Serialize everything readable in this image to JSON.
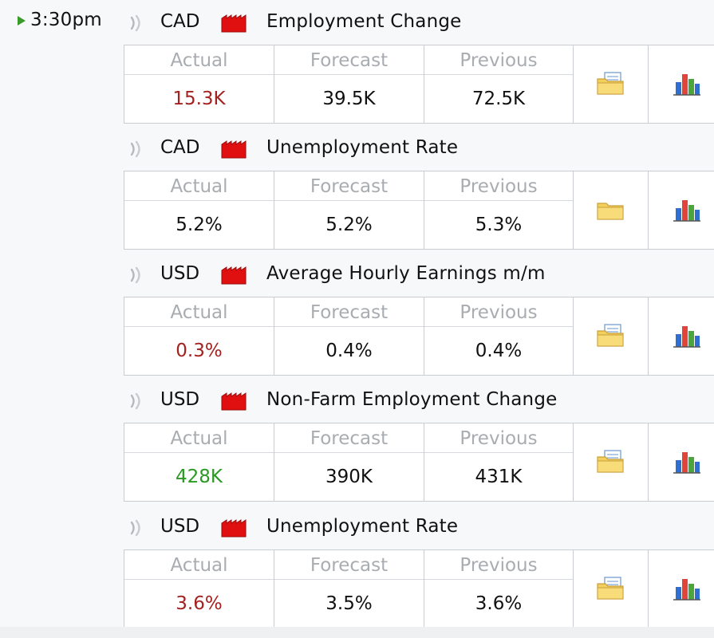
{
  "time": "3:30pm",
  "colors": {
    "negative": "#a3221f",
    "positive": "#2a9a22",
    "neutral": "#111111",
    "impact_high": "#e01010"
  },
  "headers": {
    "actual": "Actual",
    "forecast": "Forecast",
    "previous": "Previous"
  },
  "events": [
    {
      "currency": "CAD",
      "impact": "high",
      "title": "Employment Change",
      "actual": "15.3K",
      "actual_status": "negative",
      "forecast": "39.5K",
      "previous": "72.5K",
      "detail_icon": "folder-with-document-icon",
      "chart_icon": "bar-chart-icon"
    },
    {
      "currency": "CAD",
      "impact": "high",
      "title": "Unemployment Rate",
      "actual": "5.2%",
      "actual_status": "neutral",
      "forecast": "5.2%",
      "previous": "5.3%",
      "detail_icon": "folder-icon",
      "chart_icon": "bar-chart-icon"
    },
    {
      "currency": "USD",
      "impact": "high",
      "title": "Average Hourly Earnings m/m",
      "actual": "0.3%",
      "actual_status": "negative",
      "forecast": "0.4%",
      "previous": "0.4%",
      "detail_icon": "folder-with-document-icon",
      "chart_icon": "bar-chart-icon"
    },
    {
      "currency": "USD",
      "impact": "high",
      "title": "Non-Farm Employment Change",
      "actual": "428K",
      "actual_status": "positive",
      "forecast": "390K",
      "previous": "431K",
      "detail_icon": "folder-with-document-icon",
      "chart_icon": "bar-chart-icon"
    },
    {
      "currency": "USD",
      "impact": "high",
      "title": "Unemployment Rate",
      "actual": "3.6%",
      "actual_status": "negative",
      "forecast": "3.5%",
      "previous": "3.6%",
      "detail_icon": "folder-with-document-icon",
      "chart_icon": "bar-chart-icon"
    }
  ]
}
